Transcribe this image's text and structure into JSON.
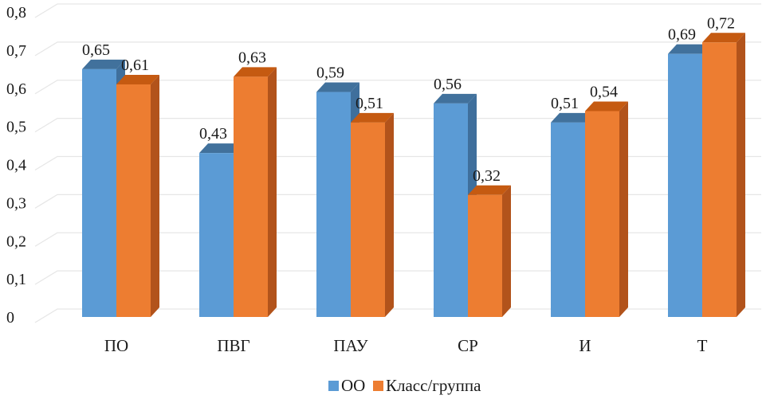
{
  "chart_data": {
    "type": "bar",
    "categories": [
      "ПО",
      "ПВГ",
      "ПАУ",
      "СР",
      "И",
      "Т"
    ],
    "series": [
      {
        "name": "ОО",
        "values": [
          0.65,
          0.43,
          0.59,
          0.56,
          0.51,
          0.69
        ],
        "labels": [
          "0,65",
          "0,43",
          "0,59",
          "0,56",
          "0,51",
          "0,69"
        ],
        "color": "#5b9bd5",
        "top_color": "#41719c",
        "side_color": "#3f6f9c"
      },
      {
        "name": "Класс/группа",
        "values": [
          0.61,
          0.63,
          0.51,
          0.32,
          0.54,
          0.72
        ],
        "labels": [
          "0,61",
          "0,63",
          "0,51",
          "0,32",
          "0,54",
          "0,72"
        ],
        "color": "#ed7d31",
        "top_color": "#c55a11",
        "side_color": "#b2531b"
      }
    ],
    "yticks": [
      0,
      0.1,
      0.2,
      0.3,
      0.4,
      0.5,
      0.6,
      0.7,
      0.8
    ],
    "ytick_labels": [
      "0",
      "0,1",
      "0,2",
      "0,3",
      "0,4",
      "0,5",
      "0,6",
      "0,7",
      "0,8"
    ],
    "ylim": [
      0,
      0.8
    ],
    "grid": true,
    "legend_position": "bottom",
    "style": "3d-clustered-column"
  }
}
